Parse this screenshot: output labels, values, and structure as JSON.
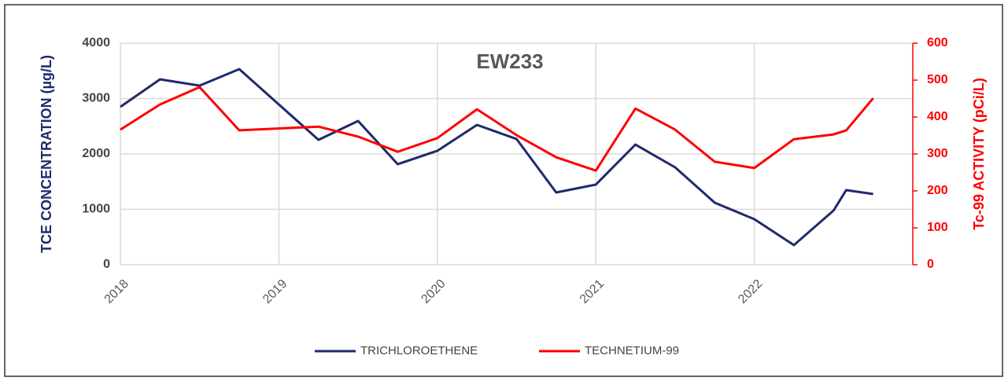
{
  "chart_data": {
    "type": "line",
    "title": "EW233",
    "y_label": "TCE CONCENTRATION (µg/L)",
    "y2_label": "Tc-99 ACTIVITY (pCi/L)",
    "xlim": [
      2018,
      2023
    ],
    "xticks": [
      2018,
      2019,
      2020,
      2021,
      2022
    ],
    "ylim": [
      0,
      4000
    ],
    "yticks": [
      0,
      1000,
      2000,
      3000,
      4000
    ],
    "y2lim": [
      0,
      600
    ],
    "y2ticks": [
      0,
      100,
      200,
      300,
      400,
      500,
      600
    ],
    "grid": true,
    "legend": "bottom",
    "series": [
      {
        "name": "TRICHLOROETHENE",
        "color": "#1f2a6b",
        "x": [
          2018.0,
          2018.25,
          2018.5,
          2018.75,
          2019.25,
          2019.5,
          2019.75,
          2020.0,
          2020.25,
          2020.5,
          2020.75,
          2021.0,
          2021.25,
          2021.5,
          2021.75,
          2022.0,
          2022.25,
          2022.5,
          2022.58,
          2022.75
        ],
        "values": [
          2851,
          3348,
          3234,
          3532,
          2255,
          2596,
          1816,
          2057,
          2525,
          2270,
          1305,
          1447,
          2170,
          1759,
          1121,
          823,
          355,
          979,
          1348,
          1277
        ]
      },
      {
        "name": "TECHNETIUM-99",
        "color": "#ff0000",
        "axis": "y2",
        "x": [
          2018.0,
          2018.25,
          2018.5,
          2018.75,
          2019.25,
          2019.5,
          2019.75,
          2020.0,
          2020.25,
          2020.5,
          2020.75,
          2021.0,
          2021.25,
          2021.5,
          2021.75,
          2022.0,
          2022.25,
          2022.5,
          2022.58,
          2022.75
        ],
        "values": [
          366,
          434,
          481,
          364,
          374,
          347,
          306,
          343,
          421,
          351,
          291,
          255,
          423,
          366,
          279,
          262,
          340,
          353,
          364,
          451
        ]
      }
    ]
  }
}
